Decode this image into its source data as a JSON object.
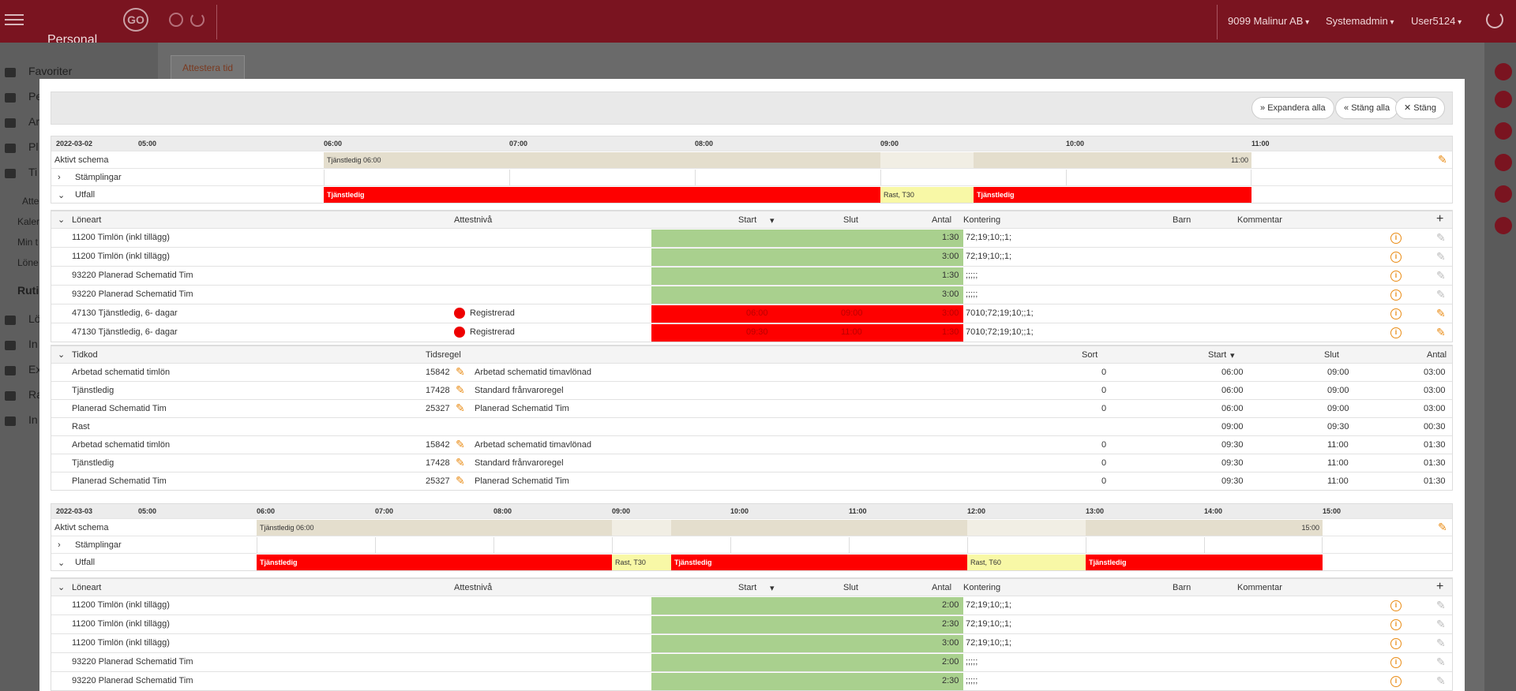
{
  "app": {
    "module": "Personal",
    "company": "9099 Malinur AB",
    "role": "Systemadmin",
    "user": "User5124"
  },
  "sidebar": {
    "items": [
      "Favoriter",
      "Pe",
      "Ar",
      "Pl",
      "Ti",
      "Atte",
      "Kaler",
      "Min t",
      "Löne",
      "Ruti",
      "Lö",
      "In",
      "Ex",
      "Ra",
      "In"
    ]
  },
  "tab": {
    "label": "Attestera tid"
  },
  "toolbar": {
    "expand": "Expandera alla",
    "collapse": "Stäng alla",
    "close": "Stäng"
  },
  "days": [
    {
      "date": "2022-03-02",
      "hours": [
        "05:00",
        "06:00",
        "07:00",
        "08:00",
        "09:00",
        "10:00",
        "11:00"
      ],
      "rows": {
        "schedule": "Aktivt schema",
        "stamps": "Stämplingar",
        "outcome": "Utfall"
      },
      "schedule_start": "Tjänstledig 06:00",
      "schedule_end": "11:00",
      "outcome_segments": [
        "Tjänstledig",
        "Rast, T30",
        "Tjänstledig"
      ],
      "pay_header": [
        "Löneart",
        "Attestnivå",
        "Start",
        "Slut",
        "Antal",
        "Kontering",
        "Barn",
        "Kommentar"
      ],
      "pay": [
        {
          "art": "11200 Timlön (inkl tillägg)",
          "level": "",
          "start": "",
          "end": "",
          "qty": "1:30",
          "acc": "72;19;10;;1;"
        },
        {
          "art": "11200 Timlön (inkl tillägg)",
          "level": "",
          "start": "",
          "end": "",
          "qty": "3:00",
          "acc": "72;19;10;;1;"
        },
        {
          "art": "93220 Planerad Schematid Tim",
          "level": "",
          "start": "",
          "end": "",
          "qty": "1:30",
          "acc": ";;;;;"
        },
        {
          "art": "93220 Planerad Schematid Tim",
          "level": "",
          "start": "",
          "end": "",
          "qty": "3:00",
          "acc": ";;;;;"
        },
        {
          "art": "47130 Tjänstledig, 6- dagar",
          "level": "Registrerad",
          "start": "06:00",
          "end": "09:00",
          "qty": "3:00",
          "acc": "7010;72;19;10;;1;"
        },
        {
          "art": "47130 Tjänstledig, 6- dagar",
          "level": "Registrerad",
          "start": "09:30",
          "end": "11:00",
          "qty": "1:30",
          "acc": "7010;72;19;10;;1;"
        }
      ],
      "time_header": [
        "Tidkod",
        "Tidsregel",
        "Sort",
        "Start",
        "Slut",
        "Antal"
      ],
      "time": [
        {
          "code": "Arbetad schematid timlön",
          "rid": "15842",
          "rule": "Arbetad schematid timavlönad",
          "sort": "0",
          "start": "06:00",
          "end": "09:00",
          "qty": "03:00"
        },
        {
          "code": "Tjänstledig",
          "rid": "17428",
          "rule": "Standard frånvaroregel",
          "sort": "0",
          "start": "06:00",
          "end": "09:00",
          "qty": "03:00"
        },
        {
          "code": "Planerad Schematid Tim",
          "rid": "25327",
          "rule": "Planerad Schematid Tim",
          "sort": "0",
          "start": "06:00",
          "end": "09:00",
          "qty": "03:00"
        },
        {
          "code": "Rast",
          "rid": "",
          "rule": "",
          "sort": "",
          "start": "09:00",
          "end": "09:30",
          "qty": "00:30"
        },
        {
          "code": "Arbetad schematid timlön",
          "rid": "15842",
          "rule": "Arbetad schematid timavlönad",
          "sort": "0",
          "start": "09:30",
          "end": "11:00",
          "qty": "01:30"
        },
        {
          "code": "Tjänstledig",
          "rid": "17428",
          "rule": "Standard frånvaroregel",
          "sort": "0",
          "start": "09:30",
          "end": "11:00",
          "qty": "01:30"
        },
        {
          "code": "Planerad Schematid Tim",
          "rid": "25327",
          "rule": "Planerad Schematid Tim",
          "sort": "0",
          "start": "09:30",
          "end": "11:00",
          "qty": "01:30"
        }
      ]
    },
    {
      "date": "2022-03-03",
      "hours": [
        "05:00",
        "06:00",
        "07:00",
        "08:00",
        "09:00",
        "10:00",
        "11:00",
        "12:00",
        "13:00",
        "14:00",
        "15:00"
      ],
      "rows": {
        "schedule": "Aktivt schema",
        "stamps": "Stämplingar",
        "outcome": "Utfall"
      },
      "schedule_start": "Tjänstledig 06:00",
      "schedule_end": "15:00",
      "outcome_segments": [
        "Tjänstledig",
        "Rast, T30",
        "Tjänstledig",
        "Rast, T60",
        "Tjänstledig"
      ],
      "pay_header": [
        "Löneart",
        "Attestnivå",
        "Start",
        "Slut",
        "Antal",
        "Kontering",
        "Barn",
        "Kommentar"
      ],
      "pay": [
        {
          "art": "11200 Timlön (inkl tillägg)",
          "qty": "2:00",
          "acc": "72;19;10;;1;"
        },
        {
          "art": "11200 Timlön (inkl tillägg)",
          "qty": "2:30",
          "acc": "72;19;10;;1;"
        },
        {
          "art": "11200 Timlön (inkl tillägg)",
          "qty": "3:00",
          "acc": "72;19;10;;1;"
        },
        {
          "art": "93220 Planerad Schematid Tim",
          "qty": "2:00",
          "acc": ";;;;;"
        },
        {
          "art": "93220 Planerad Schematid Tim",
          "qty": "2:30",
          "acc": ";;;;;"
        }
      ]
    }
  ]
}
